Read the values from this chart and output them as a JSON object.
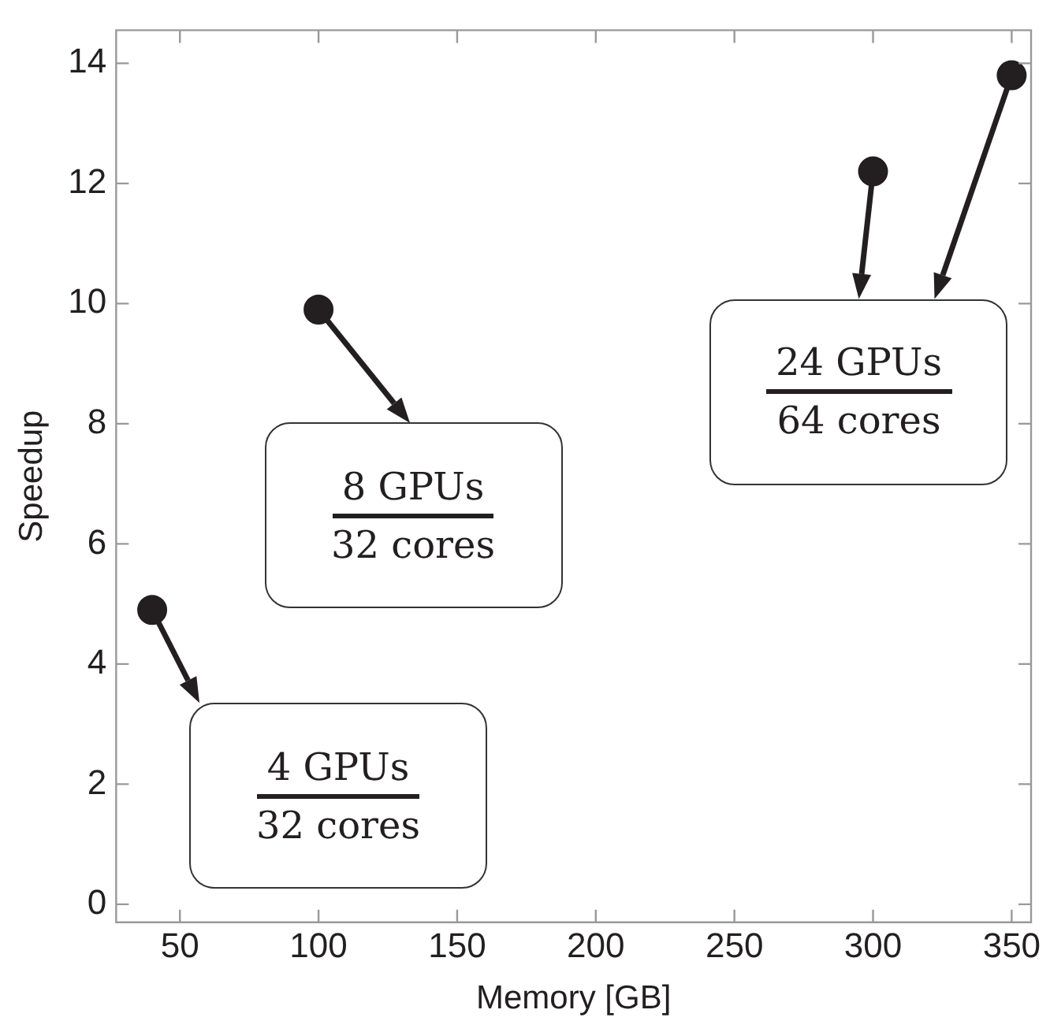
{
  "chart_data": {
    "type": "scatter",
    "xlabel": "Memory [GB]",
    "ylabel": "Speedup",
    "x": [
      40,
      100,
      300,
      350
    ],
    "values": [
      4.9,
      9.9,
      12.2,
      13.8
    ],
    "color": "#231f20",
    "marker": "circle",
    "xlim": [
      27,
      357
    ],
    "xticks": [
      50,
      100,
      150,
      200,
      250,
      300,
      350
    ],
    "ylim": [
      -0.3,
      14.55
    ],
    "yticks": [
      0,
      2,
      4,
      6,
      8,
      10,
      12,
      14
    ],
    "grid": false,
    "legend": false,
    "annotations": [
      "4 GPUs\n32 cores",
      "8 GPUs\n32 cores",
      "24 GPUs\n64 cores"
    ]
  }
}
